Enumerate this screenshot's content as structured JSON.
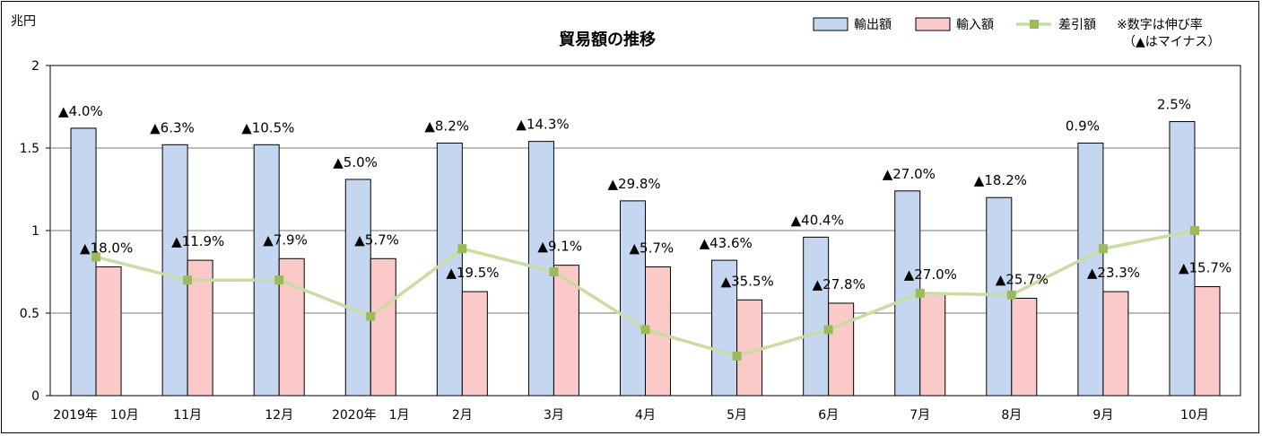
{
  "chart_data": {
    "type": "bar",
    "title": "貿易額の推移",
    "ylabel": "兆円",
    "ylim": [
      0,
      2
    ],
    "yticks": [
      "0",
      "0.5",
      "1",
      "1.5",
      "2"
    ],
    "grid": true,
    "legend_position": "top-right",
    "note_line1": "※数字は伸び率",
    "note_line2": "（▲はマイナス）",
    "categories": [
      "2019年　10月",
      "11月",
      "12月",
      "2020年　1月",
      "2月",
      "3月",
      "4月",
      "5月",
      "6月",
      "7月",
      "8月",
      "9月",
      "10月"
    ],
    "series": [
      {
        "name": "輸出額",
        "kind": "bar",
        "color": "#c5d7f0",
        "values": [
          1.62,
          1.52,
          1.52,
          1.31,
          1.53,
          1.54,
          1.18,
          0.82,
          0.96,
          1.24,
          1.2,
          1.53,
          1.66
        ],
        "labels": [
          "▲4.0%",
          "▲6.3%",
          "▲10.5%",
          "▲5.0%",
          "▲8.2%",
          "▲14.3%",
          "▲29.8%",
          "▲43.6%",
          "▲40.4%",
          "▲27.0%",
          "▲18.2%",
          "0.9%",
          "2.5%"
        ]
      },
      {
        "name": "輸入額",
        "kind": "bar",
        "color": "#fcc9c9",
        "values": [
          0.78,
          0.82,
          0.83,
          0.83,
          0.63,
          0.79,
          0.78,
          0.58,
          0.56,
          0.62,
          0.59,
          0.63,
          0.66
        ],
        "labels": [
          "▲18.0%",
          "▲11.9%",
          "▲7.9%",
          "▲5.7%",
          "▲19.5%",
          "▲9.1%",
          "▲5.7%",
          "▲35.5%",
          "▲27.8%",
          "▲27.0%",
          "▲25.7%",
          "▲23.3%",
          "▲15.7%"
        ]
      },
      {
        "name": "差引額",
        "kind": "line",
        "color": "#9bbb59",
        "values": [
          0.84,
          0.7,
          0.7,
          0.48,
          0.89,
          0.75,
          0.4,
          0.24,
          0.4,
          0.62,
          0.61,
          0.89,
          1.0
        ]
      }
    ]
  }
}
